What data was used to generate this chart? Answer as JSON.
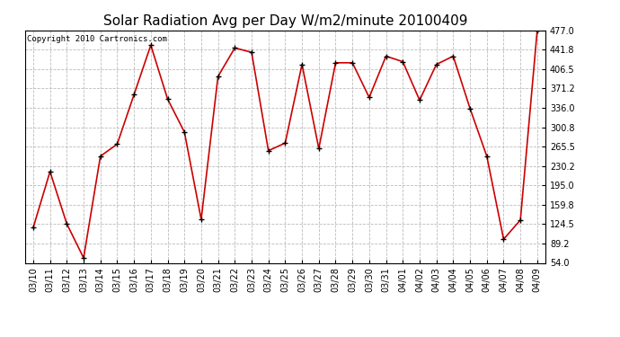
{
  "title": "Solar Radiation Avg per Day W/m2/minute 20100409",
  "copyright": "Copyright 2010 Cartronics.com",
  "dates": [
    "03/10",
    "03/11",
    "03/12",
    "03/13",
    "03/14",
    "03/15",
    "03/16",
    "03/17",
    "03/18",
    "03/19",
    "03/20",
    "03/21",
    "03/22",
    "03/23",
    "03/24",
    "03/25",
    "03/26",
    "03/27",
    "03/28",
    "03/29",
    "03/30",
    "03/31",
    "04/01",
    "04/02",
    "04/03",
    "04/04",
    "04/05",
    "04/06",
    "04/07",
    "04/08",
    "04/09"
  ],
  "values": [
    118,
    220,
    125,
    63,
    248,
    270,
    360,
    450,
    352,
    292,
    133,
    393,
    445,
    437,
    258,
    272,
    415,
    262,
    418,
    418,
    355,
    430,
    420,
    350,
    415,
    430,
    335,
    248,
    97,
    132,
    477
  ],
  "line_color": "#cc0000",
  "marker_color": "#000000",
  "bg_color": "#ffffff",
  "grid_color": "#bbbbbb",
  "ylim_min": 54.0,
  "ylim_max": 477.0,
  "yticks": [
    54.0,
    89.2,
    124.5,
    159.8,
    195.0,
    230.2,
    265.5,
    300.8,
    336.0,
    371.2,
    406.5,
    441.8,
    477.0
  ],
  "title_fontsize": 11,
  "axis_fontsize": 7,
  "copyright_fontsize": 6.5
}
